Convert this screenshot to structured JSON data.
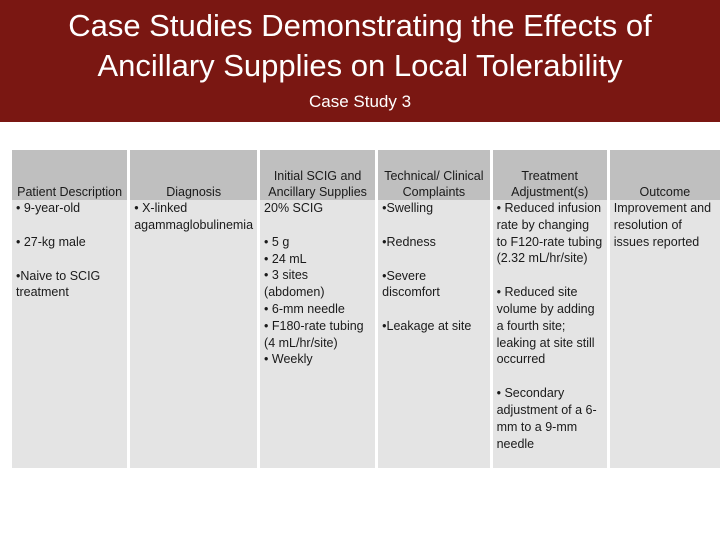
{
  "header": {
    "title_line1": "Case Studies Demonstrating the Effects of",
    "title_line2": "Ancillary Supplies on Local Tolerability",
    "subtitle": "Case Study 3"
  },
  "table": {
    "headers": [
      "Patient Description",
      "Diagnosis",
      "Initial SCIG and Ancillary Supplies",
      "Technical/ Clinical Complaints",
      "Treatment Adjustment(s)",
      "Outcome"
    ],
    "row": {
      "patient": [
        "• 9-year-old",
        "• 27-kg male",
        "•Naive to SCIG treatment"
      ],
      "diagnosis": "• X-linked agammaglobulinemia",
      "supplies": [
        "20% SCIG",
        "• 5 g",
        "• 24 mL",
        "• 3 sites (abdomen)",
        "• 6-mm needle",
        "• F180-rate tubing (4 mL/hr/site)",
        "• Weekly"
      ],
      "complaints": [
        "•Swelling",
        "•Redness",
        "•Severe discomfort",
        "•Leakage at site"
      ],
      "adjustments": [
        "• Reduced infusion rate by changing to F120-rate tubing (2.32 mL/hr/site)",
        "• Reduced site volume by adding a fourth site; leaking at site still occurred",
        "• Secondary adjustment of a 6-mm to a 9-mm needle"
      ],
      "outcome": "Improvement and resolution of issues reported"
    }
  }
}
